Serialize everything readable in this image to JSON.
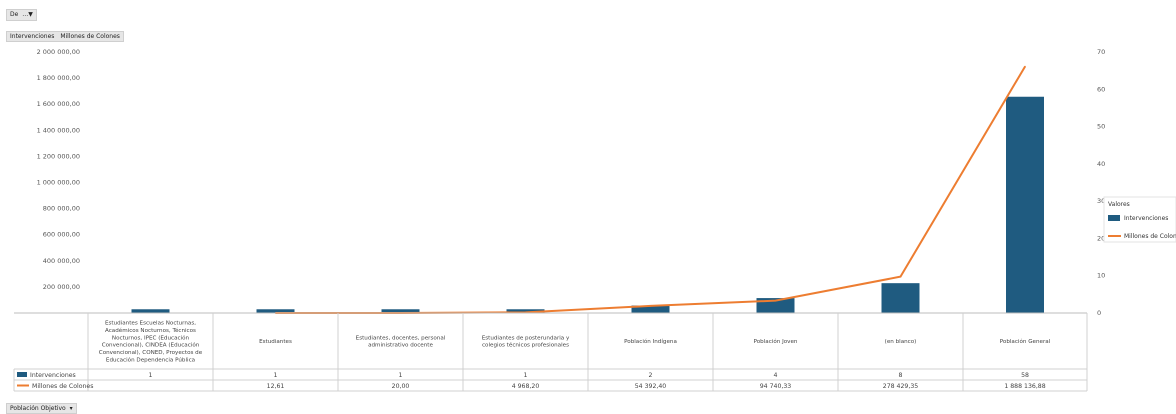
{
  "filter_button": {
    "label": "De",
    "icon": "filter-icon"
  },
  "field_buttons": [
    "Intervenciones",
    "Millones de Colones"
  ],
  "bottom_button": {
    "label": "Población Objetivo",
    "icon": "dropdown-arrow-icon"
  },
  "colors": {
    "bar": "#1f5b80",
    "line": "#ed7d31"
  },
  "legend": {
    "title": "Valores",
    "items": [
      "Intervenciones",
      "Millones de Colones"
    ],
    "position": "right"
  },
  "chart_data": {
    "type": "bar",
    "combo": "bar+line",
    "categories": [
      "Estudiantes Escuelas Nocturnas, Académicos Nocturnos, Técnicos Nocturnos, IPEC (Educación Convencional), CINDEA (Educación Convencional), CONED, Proyectos de Educación Dependencia Pública",
      "Estudiantes",
      "Estudiantes, docentes, personal administrativo docente",
      "Estudiantes de posterundaria y colegios técnicos profesionales",
      "Población Indígena",
      "Población Joven",
      "(en blanco)",
      "Población General"
    ],
    "series": [
      {
        "name": "Intervenciones",
        "type": "bar",
        "axis": "right",
        "values": [
          1,
          1,
          1,
          1,
          2,
          4,
          8,
          58
        ],
        "labels": [
          "1",
          "1",
          "1",
          "1",
          "2",
          "4",
          "8",
          "58"
        ]
      },
      {
        "name": "Millones de Colones",
        "type": "line",
        "axis": "left",
        "values": [
          null,
          12.61,
          20.0,
          4968.2,
          54392.4,
          94740.33,
          278429.35,
          1888136.88
        ],
        "labels": [
          "",
          "12,61",
          "20,00",
          "4 968,20",
          "54 392,40",
          "94 740,33",
          "278 429,35",
          "1 888 136,88"
        ]
      }
    ],
    "y_left": {
      "ticks": [
        "-",
        "200 000,00",
        "400 000,00",
        "600 000,00",
        "800 000,00",
        "1 000 000,00",
        "1 200 000,00",
        "1 400 000,00",
        "1 600 000,00",
        "1 800 000,00",
        "2 000 000,00"
      ],
      "ylim": [
        0,
        2000000
      ]
    },
    "y_right": {
      "ticks": [
        "0",
        "10",
        "20",
        "30",
        "40",
        "50",
        "60",
        "70"
      ],
      "ylim": [
        0,
        70
      ]
    },
    "grid": false
  }
}
